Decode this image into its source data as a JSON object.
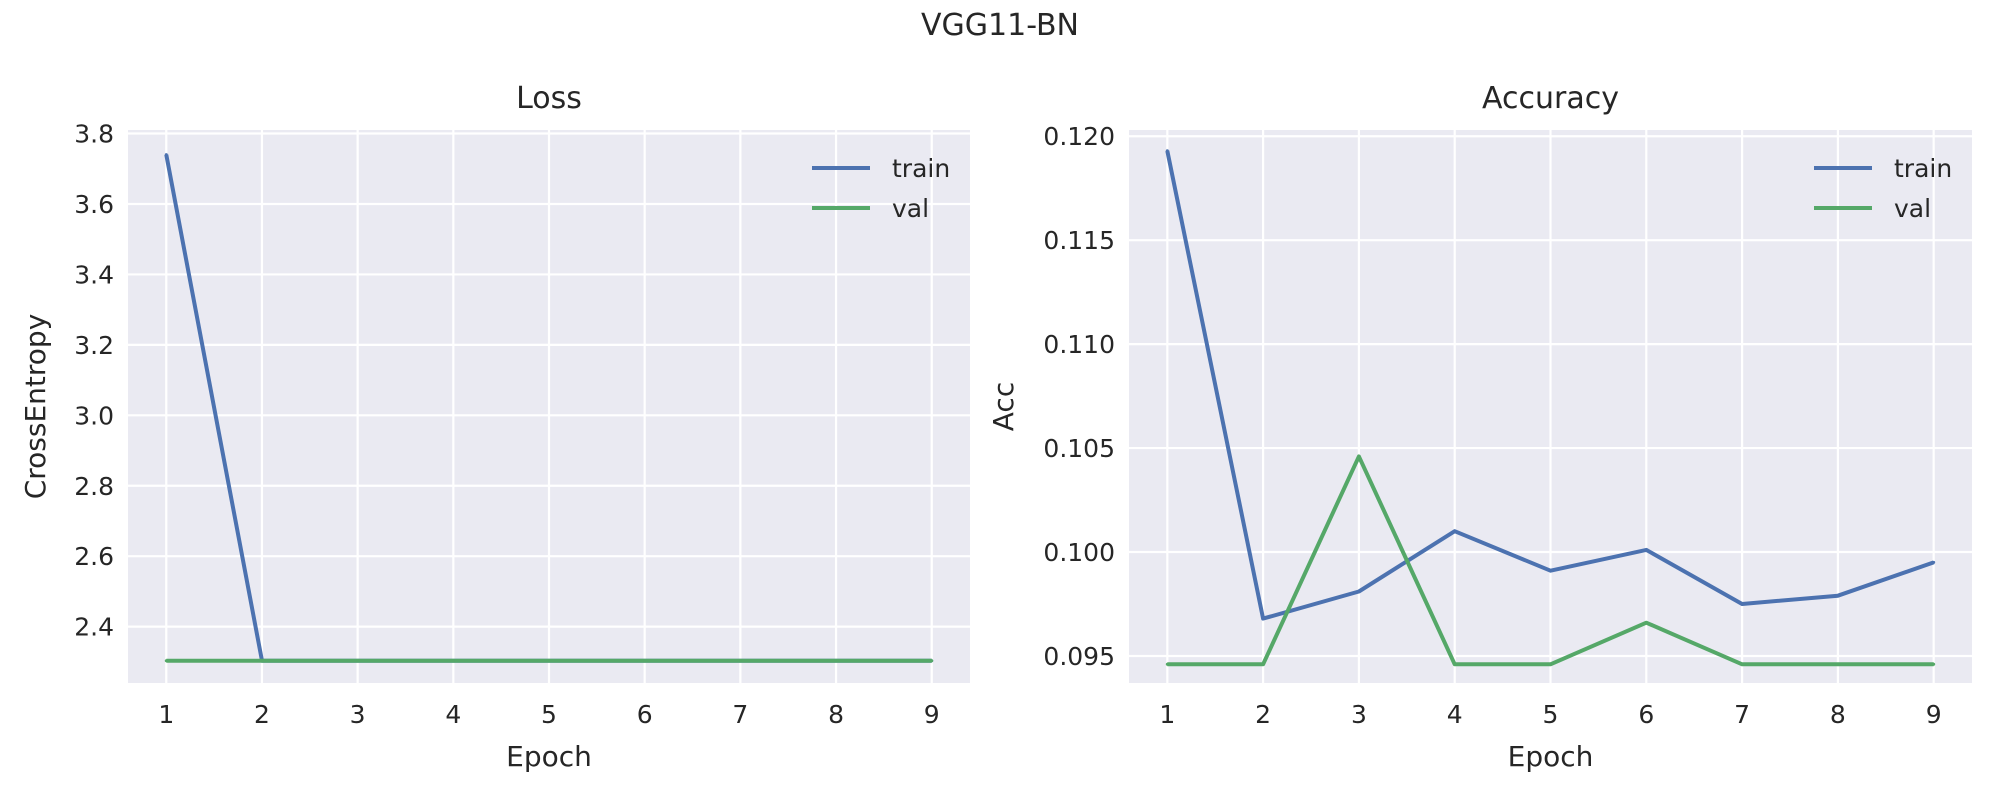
{
  "figure": {
    "title": "VGG11-BN",
    "style": {
      "background": "#eaeaf2",
      "grid": "#ffffff",
      "train_color": "#4c72b0",
      "val_color": "#55a868"
    }
  },
  "chart_data": [
    {
      "type": "line",
      "title": "Loss",
      "xlabel": "Epoch",
      "ylabel": "CrossEntropy",
      "x": [
        1,
        2,
        3,
        4,
        5,
        6,
        7,
        8,
        9
      ],
      "xticks": [
        "1",
        "2",
        "3",
        "4",
        "5",
        "6",
        "7",
        "8",
        "9"
      ],
      "yticks": [
        "2.4",
        "2.6",
        "2.8",
        "3.0",
        "3.2",
        "3.4",
        "3.6",
        "3.8"
      ],
      "xlim": [
        0.6,
        9.4
      ],
      "ylim": [
        2.24,
        3.81
      ],
      "grid": true,
      "legend_position": "top-right",
      "series": [
        {
          "name": "train",
          "color": "#4c72b0",
          "values": [
            3.74,
            2.303,
            2.303,
            2.303,
            2.303,
            2.303,
            2.303,
            2.303,
            2.303
          ]
        },
        {
          "name": "val",
          "color": "#55a868",
          "values": [
            2.303,
            2.303,
            2.303,
            2.303,
            2.303,
            2.303,
            2.303,
            2.303,
            2.303
          ]
        }
      ]
    },
    {
      "type": "line",
      "title": "Accuracy",
      "xlabel": "Epoch",
      "ylabel": "Acc",
      "x": [
        1,
        2,
        3,
        4,
        5,
        6,
        7,
        8,
        9
      ],
      "xticks": [
        "1",
        "2",
        "3",
        "4",
        "5",
        "6",
        "7",
        "8",
        "9"
      ],
      "yticks": [
        "0.095",
        "0.100",
        "0.105",
        "0.110",
        "0.115",
        "0.120"
      ],
      "xlim": [
        0.6,
        9.4
      ],
      "ylim": [
        0.0937,
        0.1203
      ],
      "grid": true,
      "legend_position": "top-right",
      "series": [
        {
          "name": "train",
          "color": "#4c72b0",
          "values": [
            0.1193,
            0.0968,
            0.0981,
            0.101,
            0.0991,
            0.1001,
            0.0975,
            0.0979,
            0.0995
          ]
        },
        {
          "name": "val",
          "color": "#55a868",
          "values": [
            0.0946,
            0.0946,
            0.1046,
            0.0946,
            0.0946,
            0.0966,
            0.0946,
            0.0946,
            0.0946
          ]
        }
      ]
    }
  ]
}
